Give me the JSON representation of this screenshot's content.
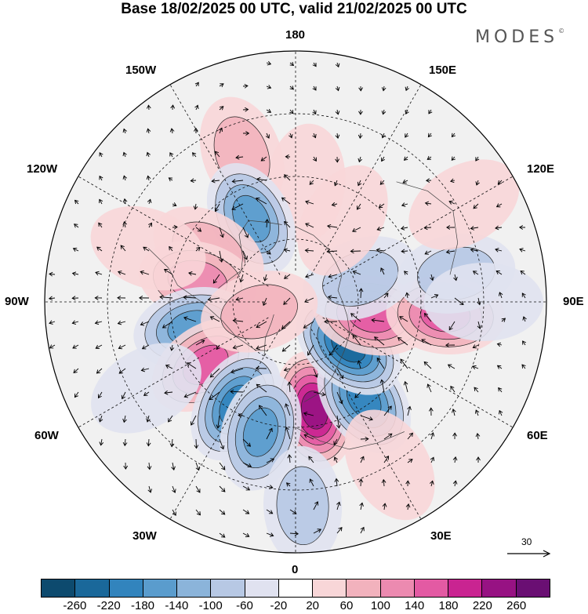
{
  "title": "Base 18/02/2025 00 UTC, valid 21/02/2025 00 UTC",
  "brand": "MODES",
  "brand_mark": "©",
  "longitude_labels": {
    "top": "180",
    "bottom": "0",
    "left": "90W",
    "right": "90E",
    "w150": "150W",
    "e150": "150E",
    "w120": "120W",
    "e120": "120E",
    "w60": "60W",
    "e60": "60E",
    "w30": "30W",
    "e30": "30E"
  },
  "vector_reference": {
    "value": "30",
    "icon": "arrow-right-icon"
  },
  "colorbar": {
    "colors": [
      "#0d4a6e",
      "#1a689a",
      "#3284bd",
      "#5a9ccd",
      "#8bb4da",
      "#b7c8e4",
      "#e0e2f0",
      "#ffffff",
      "#f8d6d8",
      "#f2b2bd",
      "#ec8ab0",
      "#e35aa3",
      "#c92491",
      "#971283",
      "#6a0f73"
    ],
    "ticks": [
      "-260",
      "-220",
      "-180",
      "-140",
      "-100",
      "-60",
      "-20",
      "20",
      "60",
      "100",
      "140",
      "180",
      "220",
      "260"
    ]
  },
  "anomalies": [
    {
      "lon": 10,
      "lat": 55,
      "value": 240
    },
    {
      "lon": 35,
      "lat": 52,
      "value": -200
    },
    {
      "lon": 50,
      "lat": 68,
      "value": -260
    },
    {
      "lon": 80,
      "lat": 65,
      "value": 180
    },
    {
      "lon": 85,
      "lat": 42,
      "value": 150
    },
    {
      "lon": 110,
      "lat": 68,
      "value": -80
    },
    {
      "lon": 100,
      "lat": 38,
      "value": -80
    },
    {
      "lon": 90,
      "lat": 30,
      "value": -60
    },
    {
      "lon": 150,
      "lat": 60,
      "value": 60
    },
    {
      "lon": 175,
      "lat": 52,
      "value": 60
    },
    {
      "lon": 200,
      "lat": 40,
      "value": 80
    },
    {
      "lon": 208,
      "lat": 60,
      "value": -160
    },
    {
      "lon": 240,
      "lat": 58,
      "value": 80
    },
    {
      "lon": 258,
      "lat": 58,
      "value": 110
    },
    {
      "lon": 284,
      "lat": 56,
      "value": -170
    },
    {
      "lon": 305,
      "lat": 55,
      "value": 180
    },
    {
      "lon": 330,
      "lat": 52,
      "value": -190
    },
    {
      "lon": 345,
      "lat": 47,
      "value": -150
    },
    {
      "lon": 2,
      "lat": 25,
      "value": -80
    },
    {
      "lon": 285,
      "lat": 78,
      "value": 70
    },
    {
      "lon": 250,
      "lat": 40,
      "value": 40
    },
    {
      "lon": 30,
      "lat": 30,
      "value": 40
    },
    {
      "lon": 300,
      "lat": 35,
      "value": -40
    },
    {
      "lon": 120,
      "lat": 28,
      "value": 40
    }
  ]
}
